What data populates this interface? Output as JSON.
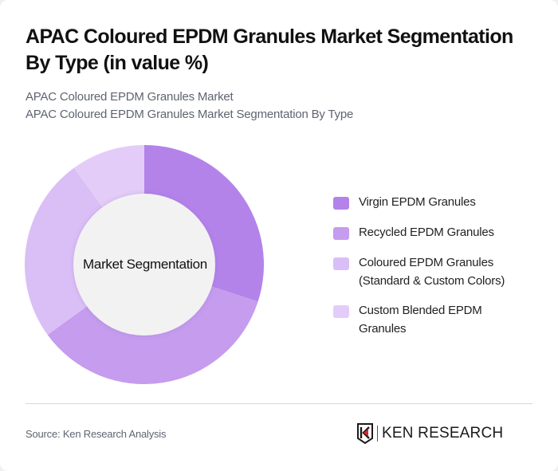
{
  "header": {
    "title": "APAC Coloured EPDM Granules Market Segmentation By Type (in value %)",
    "subtitle_line1": "APAC Coloured EPDM Granules Market",
    "subtitle_line2": "APAC Coloured EPDM Granules Market Segmentation By Type"
  },
  "chart": {
    "center_label": "Market Segmentation"
  },
  "legend": {
    "items": [
      {
        "label": "Virgin EPDM Granules",
        "color": "#b383ea"
      },
      {
        "label": "Recycled EPDM Granules",
        "color": "#c59cee"
      },
      {
        "label": "Coloured EPDM Granules (Standard & Custom Colors)",
        "color": "#dabff6"
      },
      {
        "label": "Custom Blended EPDM Granules",
        "color": "#e3cdf8"
      }
    ]
  },
  "footer": {
    "source": "Source: Ken Research Analysis",
    "logo_text": "KEN RESEARCH"
  },
  "chart_data": {
    "type": "pie",
    "variant": "donut",
    "title": "APAC Coloured EPDM Granules Market Segmentation By Type (in value %)",
    "center_label": "Market Segmentation",
    "categories": [
      "Virgin EPDM Granules",
      "Recycled EPDM Granules",
      "Coloured EPDM Granules (Standard & Custom Colors)",
      "Custom Blended EPDM Granules"
    ],
    "values": [
      30,
      35,
      25,
      10
    ],
    "colors": [
      "#b383ea",
      "#c59cee",
      "#dabff6",
      "#e3cdf8"
    ],
    "unit": "%",
    "start_angle": "12 o'clock, clockwise",
    "legend_position": "right",
    "data_labels": false
  }
}
